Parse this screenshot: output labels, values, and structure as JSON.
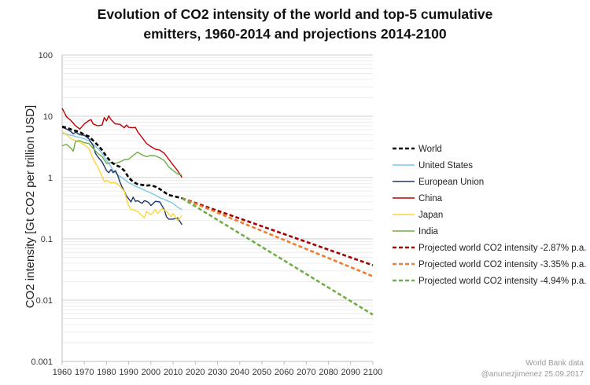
{
  "chart_data": {
    "type": "line",
    "title_line1": "Evolution of CO2 intensity of the world and top-5 cumulative",
    "title_line2": "emitters, 1960-2014 and projections 2014-2100",
    "ylabel": "CO2 intensity [Gt CO2 per trillion USD]",
    "xlabel": "",
    "yscale": "log",
    "xlim": [
      1960,
      2100
    ],
    "ylim": [
      0.001,
      100
    ],
    "xticks": [
      1960,
      1970,
      1980,
      1990,
      2000,
      2010,
      2020,
      2030,
      2040,
      2050,
      2060,
      2070,
      2080,
      2090,
      2100
    ],
    "yticks": [
      {
        "value": 100,
        "label": "100"
      },
      {
        "value": 10,
        "label": "10"
      },
      {
        "value": 1,
        "label": "1"
      },
      {
        "value": 0.1,
        "label": "0.1"
      },
      {
        "value": 0.01,
        "label": "0.01"
      },
      {
        "value": 0.001,
        "label": "0.001"
      }
    ],
    "grid": "minor-log",
    "legend_position": "right",
    "series": [
      {
        "name": "World",
        "color": "#000000",
        "dash": "dashed",
        "width": 2.6,
        "points": [
          [
            1960,
            6.8
          ],
          [
            1962,
            6.5
          ],
          [
            1964,
            6.1
          ],
          [
            1966,
            5.8
          ],
          [
            1968,
            5.5
          ],
          [
            1970,
            5.0
          ],
          [
            1972,
            4.7
          ],
          [
            1974,
            4.0
          ],
          [
            1976,
            3.4
          ],
          [
            1978,
            2.8
          ],
          [
            1980,
            2.2
          ],
          [
            1982,
            1.8
          ],
          [
            1984,
            1.6
          ],
          [
            1986,
            1.5
          ],
          [
            1988,
            1.3
          ],
          [
            1990,
            1.0
          ],
          [
            1992,
            0.85
          ],
          [
            1994,
            0.78
          ],
          [
            1996,
            0.76
          ],
          [
            1998,
            0.74
          ],
          [
            2000,
            0.75
          ],
          [
            2002,
            0.71
          ],
          [
            2004,
            0.65
          ],
          [
            2006,
            0.58
          ],
          [
            2008,
            0.52
          ],
          [
            2010,
            0.5
          ],
          [
            2012,
            0.48
          ],
          [
            2014,
            0.46
          ]
        ]
      },
      {
        "name": "United States",
        "color": "#7cc8e6",
        "dash": "solid",
        "width": 1.4,
        "points": [
          [
            1960,
            5.3
          ],
          [
            1962,
            5.1
          ],
          [
            1964,
            4.9
          ],
          [
            1966,
            4.7
          ],
          [
            1968,
            4.5
          ],
          [
            1970,
            4.3
          ],
          [
            1972,
            4.0
          ],
          [
            1974,
            3.5
          ],
          [
            1976,
            3.0
          ],
          [
            1978,
            2.5
          ],
          [
            1980,
            1.9
          ],
          [
            1982,
            1.5
          ],
          [
            1983,
            1.3
          ],
          [
            1985,
            1.1
          ],
          [
            1987,
            1.0
          ],
          [
            1990,
            0.82
          ],
          [
            1992,
            0.76
          ],
          [
            1994,
            0.7
          ],
          [
            1996,
            0.65
          ],
          [
            1998,
            0.6
          ],
          [
            2000,
            0.56
          ],
          [
            2002,
            0.52
          ],
          [
            2004,
            0.47
          ],
          [
            2006,
            0.44
          ],
          [
            2008,
            0.41
          ],
          [
            2010,
            0.38
          ],
          [
            2012,
            0.33
          ],
          [
            2014,
            0.3
          ]
        ]
      },
      {
        "name": "European Union",
        "color": "#1f3864",
        "dash": "solid",
        "width": 1.4,
        "points": [
          [
            1960,
            6.6
          ],
          [
            1962,
            6.2
          ],
          [
            1964,
            5.6
          ],
          [
            1965,
            5.2
          ],
          [
            1966,
            5.5
          ],
          [
            1968,
            5.0
          ],
          [
            1970,
            4.9
          ],
          [
            1972,
            4.3
          ],
          [
            1974,
            3.3
          ],
          [
            1975,
            2.5
          ],
          [
            1976,
            2.2
          ],
          [
            1978,
            1.8
          ],
          [
            1980,
            1.3
          ],
          [
            1981,
            1.2
          ],
          [
            1982,
            1.35
          ],
          [
            1983,
            1.2
          ],
          [
            1984,
            1.3
          ],
          [
            1985,
            1.1
          ],
          [
            1986,
            0.85
          ],
          [
            1987,
            0.7
          ],
          [
            1988,
            0.6
          ],
          [
            1989,
            0.5
          ],
          [
            1990,
            0.45
          ],
          [
            1991,
            0.4
          ],
          [
            1992,
            0.48
          ],
          [
            1993,
            0.41
          ],
          [
            1994,
            0.42
          ],
          [
            1996,
            0.38
          ],
          [
            1997,
            0.42
          ],
          [
            1998,
            0.41
          ],
          [
            1999,
            0.39
          ],
          [
            2000,
            0.35
          ],
          [
            2002,
            0.41
          ],
          [
            2004,
            0.4
          ],
          [
            2006,
            0.3
          ],
          [
            2007,
            0.23
          ],
          [
            2008,
            0.21
          ],
          [
            2010,
            0.21
          ],
          [
            2012,
            0.22
          ],
          [
            2014,
            0.17
          ]
        ]
      },
      {
        "name": "China",
        "color": "#c00000",
        "dash": "solid",
        "width": 1.4,
        "points": [
          [
            1960,
            13.5
          ],
          [
            1961,
            11.5
          ],
          [
            1962,
            9.8
          ],
          [
            1964,
            8.5
          ],
          [
            1966,
            7.0
          ],
          [
            1968,
            6.2
          ],
          [
            1970,
            7.5
          ],
          [
            1972,
            8.5
          ],
          [
            1973,
            8.8
          ],
          [
            1974,
            7.5
          ],
          [
            1976,
            7.0
          ],
          [
            1978,
            7.2
          ],
          [
            1979,
            9.5
          ],
          [
            1980,
            8.4
          ],
          [
            1981,
            10.2
          ],
          [
            1982,
            8.8
          ],
          [
            1984,
            7.5
          ],
          [
            1986,
            7.4
          ],
          [
            1988,
            6.5
          ],
          [
            1989,
            7.2
          ],
          [
            1990,
            6.6
          ],
          [
            1992,
            6.5
          ],
          [
            1993,
            6.6
          ],
          [
            1994,
            5.6
          ],
          [
            1996,
            4.5
          ],
          [
            1998,
            3.6
          ],
          [
            2000,
            3.2
          ],
          [
            2002,
            2.9
          ],
          [
            2004,
            2.8
          ],
          [
            2006,
            2.5
          ],
          [
            2008,
            2.0
          ],
          [
            2010,
            1.6
          ],
          [
            2012,
            1.3
          ],
          [
            2014,
            1.0
          ]
        ]
      },
      {
        "name": "Japan",
        "color": "#ffd43b",
        "dash": "solid",
        "width": 1.4,
        "points": [
          [
            1960,
            5.6
          ],
          [
            1962,
            5.0
          ],
          [
            1964,
            4.3
          ],
          [
            1966,
            4.0
          ],
          [
            1968,
            3.8
          ],
          [
            1970,
            3.4
          ],
          [
            1972,
            3.0
          ],
          [
            1974,
            2.0
          ],
          [
            1976,
            1.5
          ],
          [
            1978,
            1.05
          ],
          [
            1979,
            0.85
          ],
          [
            1980,
            0.9
          ],
          [
            1982,
            0.82
          ],
          [
            1984,
            0.83
          ],
          [
            1986,
            0.72
          ],
          [
            1988,
            0.6
          ],
          [
            1989,
            0.45
          ],
          [
            1990,
            0.35
          ],
          [
            1991,
            0.3
          ],
          [
            1992,
            0.3
          ],
          [
            1994,
            0.28
          ],
          [
            1996,
            0.24
          ],
          [
            1997,
            0.22
          ],
          [
            1998,
            0.28
          ],
          [
            2000,
            0.25
          ],
          [
            2002,
            0.3
          ],
          [
            2003,
            0.26
          ],
          [
            2005,
            0.31
          ],
          [
            2007,
            0.28
          ],
          [
            2009,
            0.23
          ],
          [
            2010,
            0.26
          ],
          [
            2012,
            0.2
          ],
          [
            2014,
            0.24
          ]
        ]
      },
      {
        "name": "India",
        "color": "#70ad47",
        "dash": "solid",
        "width": 1.4,
        "points": [
          [
            1960,
            3.3
          ],
          [
            1962,
            3.5
          ],
          [
            1964,
            3.0
          ],
          [
            1965,
            2.7
          ],
          [
            1966,
            3.9
          ],
          [
            1968,
            4.0
          ],
          [
            1970,
            3.7
          ],
          [
            1972,
            3.6
          ],
          [
            1974,
            3.0
          ],
          [
            1976,
            2.5
          ],
          [
            1978,
            2.2
          ],
          [
            1980,
            1.7
          ],
          [
            1982,
            1.75
          ],
          [
            1984,
            1.7
          ],
          [
            1986,
            1.8
          ],
          [
            1988,
            1.95
          ],
          [
            1990,
            2.0
          ],
          [
            1992,
            2.3
          ],
          [
            1994,
            2.6
          ],
          [
            1996,
            2.35
          ],
          [
            1998,
            2.2
          ],
          [
            2000,
            2.3
          ],
          [
            2002,
            2.25
          ],
          [
            2004,
            2.1
          ],
          [
            2006,
            1.9
          ],
          [
            2008,
            1.5
          ],
          [
            2010,
            1.3
          ],
          [
            2012,
            1.15
          ],
          [
            2014,
            1.1
          ]
        ]
      },
      {
        "name": "Projected world CO2 intensity  -2.87% p.a.",
        "color": "#a50000",
        "dash": "dashed",
        "width": 2.6,
        "points": [
          [
            2014,
            0.46
          ],
          [
            2100,
            0.0371
          ]
        ]
      },
      {
        "name": "Projected world CO2 intensity  -3.35% p.a.",
        "color": "#ed7d31",
        "dash": "dashed",
        "width": 2.6,
        "points": [
          [
            2014,
            0.46
          ],
          [
            2100,
            0.0245
          ]
        ]
      },
      {
        "name": "Projected world CO2 intensity  -4.94% p.a.",
        "color": "#70ad47",
        "dash": "dashed",
        "width": 2.6,
        "points": [
          [
            2014,
            0.46
          ],
          [
            2100,
            0.0058
          ]
        ]
      }
    ],
    "source_note_1": "World Bank data",
    "source_note_2": "@anunezjimenez 25.09.2017"
  }
}
